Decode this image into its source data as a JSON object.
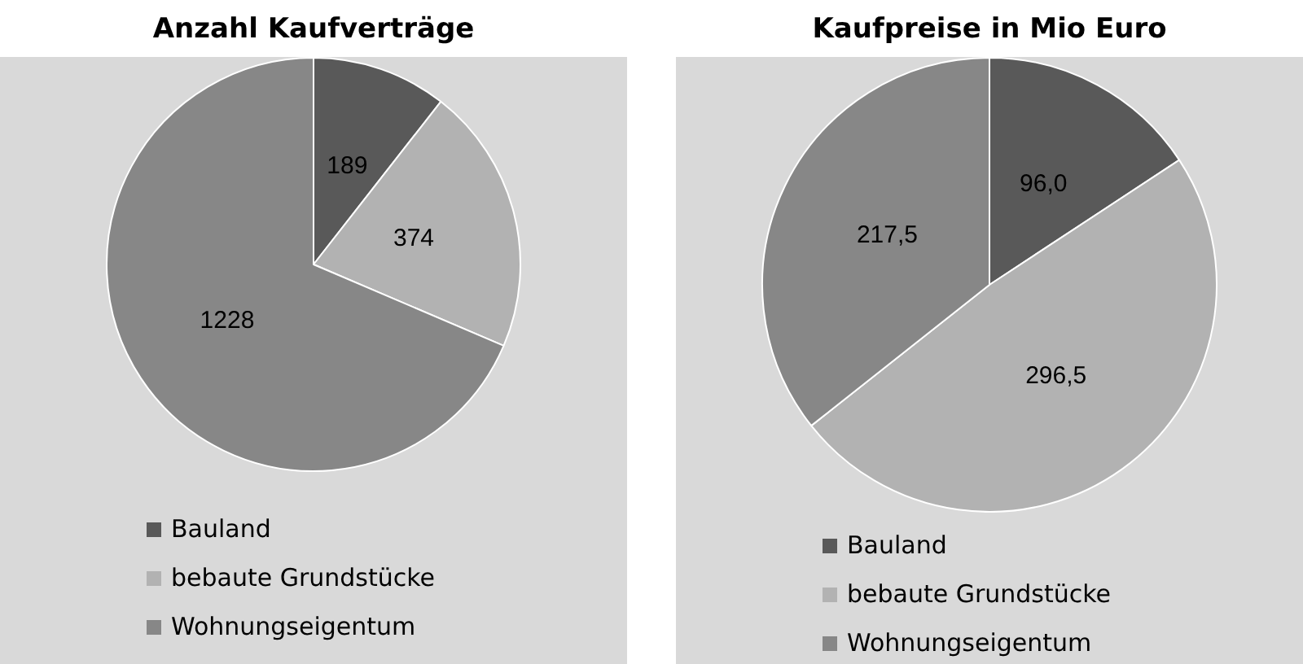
{
  "chart_data": [
    {
      "type": "pie",
      "title": "Anzahl Kaufverträge",
      "categories": [
        "Bauland",
        "bebaute Grundstücke",
        "Wohnungseigentum"
      ],
      "values": [
        189,
        374,
        1228
      ],
      "colors": [
        "#595959",
        "#b2b2b2",
        "#878787"
      ],
      "data_labels": true,
      "legend": "bottom"
    },
    {
      "type": "pie",
      "title": "Kaufpreise in Mio Euro",
      "categories": [
        "Bauland",
        "bebaute Grundstücke",
        "Wohnungseigentum"
      ],
      "values": [
        96.0,
        296.5,
        217.5
      ],
      "value_labels": [
        "96,0",
        "296,5",
        "217,5"
      ],
      "colors": [
        "#595959",
        "#b2b2b2",
        "#878787"
      ],
      "legend": "bottom"
    }
  ]
}
